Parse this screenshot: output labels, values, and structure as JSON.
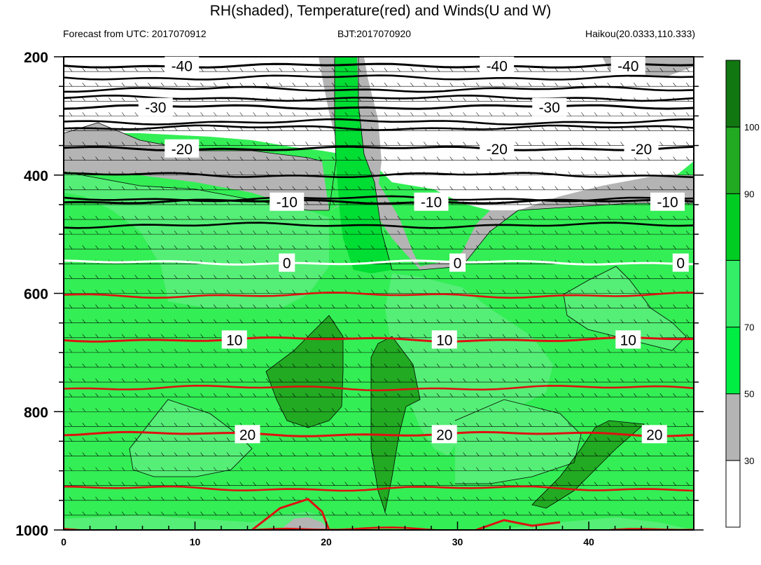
{
  "chart_data": {
    "type": "contour",
    "title": "RH(shaded), Temperature(red) and Winds(U and W)",
    "subtitle_left": "Forecast from UTC: 2017070912",
    "subtitle_center": "BJT:2017070920",
    "subtitle_right": "Haikou(20.0333,110.333)",
    "x_ticks": [
      0,
      10,
      20,
      30,
      40
    ],
    "xlim": [
      0,
      48
    ],
    "y_ticks": [
      200,
      400,
      600,
      800,
      1000
    ],
    "ylim": [
      200,
      1000
    ],
    "y_inverted": true,
    "colorbar": {
      "ticks": [
        30,
        50,
        70,
        90,
        100
      ],
      "bins": [
        {
          "range": [
            0,
            30
          ],
          "color": "#ffffff"
        },
        {
          "range": [
            30,
            50
          ],
          "color": "#b4b4b4"
        },
        {
          "range": [
            50,
            70
          ],
          "color": "#00ee44"
        },
        {
          "range": [
            70,
            80
          ],
          "color": "#33ee66"
        },
        {
          "range": [
            80,
            90
          ],
          "color": "#00cc22"
        },
        {
          "range": [
            90,
            100
          ],
          "color": "#22aa22"
        },
        {
          "range": [
            100,
            110
          ],
          "color": "#117711"
        }
      ]
    },
    "temperature_contours": [
      {
        "value": -40,
        "label": "-40",
        "color": "#000000",
        "y": 215,
        "labels_at_x": [
          9,
          33,
          43
        ]
      },
      {
        "value": -30,
        "label": "-30",
        "color": "#000000",
        "y": 285,
        "labels_at_x": [
          7,
          37
        ]
      },
      {
        "value": -20,
        "label": "-20",
        "color": "#000000",
        "y": 355,
        "labels_at_x": [
          9,
          33,
          44
        ]
      },
      {
        "value": -10,
        "label": "-10",
        "color": "#000000",
        "y": 445,
        "labels_at_x": [
          17,
          28,
          46
        ]
      },
      {
        "value": 0,
        "label": "0",
        "color": "#ffffff",
        "y": 548,
        "labels_at_x": [
          17,
          30,
          47
        ]
      },
      {
        "value": 10,
        "label": "10",
        "color": "#dd1111",
        "y": 678,
        "labels_at_x": [
          13,
          29,
          43
        ]
      },
      {
        "value": 20,
        "label": "20",
        "color": "#dd1111",
        "y": 838,
        "labels_at_x": [
          14,
          29,
          45
        ]
      }
    ],
    "extra_temperature_lines": [
      {
        "color": "#000000",
        "y": [
          235,
          255,
          270,
          310,
          320,
          400,
          440,
          485
        ]
      },
      {
        "color": "#dd1111",
        "y": [
          603,
          760,
          930,
          1000
        ]
      }
    ],
    "rh_regions": [
      {
        "rh": 40,
        "desc": "grey band",
        "top_left_x": 0
      },
      {
        "rh": 20,
        "desc": "dry upper region"
      },
      {
        "rh": 60,
        "desc": "moist low-mid layers"
      },
      {
        "rh": 95,
        "desc": "dark green cells near x=20-25 and x=36-44"
      }
    ]
  }
}
